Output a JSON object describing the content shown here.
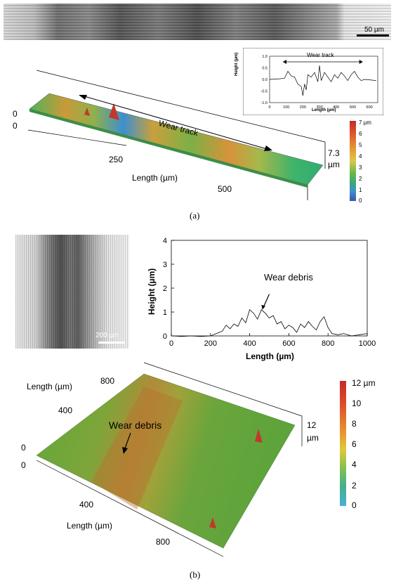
{
  "panel_a": {
    "micrograph": {
      "scale_bar": "50 µm"
    },
    "inset_chart": {
      "title": "Wear track",
      "xlabel": "Length (µm)",
      "ylabel": "Height (µm)",
      "xticks": [
        "0",
        "100",
        "200",
        "300",
        "400",
        "500",
        "600"
      ],
      "yticks": [
        "1.0",
        "0.5",
        "0.0",
        "-0.5",
        "-1.0"
      ]
    },
    "surface": {
      "wear_track_label": "Wear track",
      "length_label": "Length (µm)",
      "ticks": {
        "t0a": "0",
        "t0b": "0",
        "t250": "250",
        "t500": "500"
      },
      "height_label_1": "7.3",
      "height_label_2": "µm",
      "colorbar_ticks": [
        "7 µm",
        "6",
        "5",
        "4",
        "3",
        "2",
        "1",
        "0"
      ]
    },
    "caption": "(a)"
  },
  "panel_b": {
    "micrograph": {
      "scale_bar": "200 µm"
    },
    "chart": {
      "annotation": "Wear debris",
      "xlabel": "Length (µm)",
      "ylabel": "Height (µm)",
      "xticks": [
        "0",
        "200",
        "400",
        "600",
        "800",
        "1000"
      ],
      "yticks": [
        "4",
        "3",
        "2",
        "1",
        "0"
      ]
    },
    "surface": {
      "annotation": "Wear debris",
      "length_label_top": "Length (µm)",
      "length_label_bottom": "Length (µm)",
      "ticks": {
        "t800a": "800",
        "t400a": "400",
        "t0a": "0",
        "t0b": "0",
        "t400b": "400",
        "t800b": "800"
      },
      "height_label_1": "12",
      "height_label_2": "µm",
      "colorbar_ticks": [
        "12 µm",
        "10",
        "8",
        "6",
        "4",
        "2",
        "0"
      ]
    },
    "caption": "(b)"
  },
  "chart_data": [
    {
      "type": "line",
      "title": "Wear track",
      "xlabel": "Length (µm)",
      "ylabel": "Height (µm)",
      "xlim": [
        0,
        650
      ],
      "ylim": [
        -1.0,
        1.0
      ],
      "x": [
        0,
        50,
        90,
        110,
        130,
        150,
        170,
        190,
        200,
        210,
        220,
        230,
        250,
        270,
        290,
        300,
        310,
        330,
        350,
        370,
        390,
        410,
        430,
        450,
        470,
        490,
        510,
        530,
        550,
        570,
        600,
        640
      ],
      "y": [
        0.0,
        0.02,
        0.05,
        0.35,
        0.15,
        0.1,
        -0.2,
        -0.3,
        -0.7,
        -0.2,
        -0.45,
        0.2,
        0.1,
        0.3,
        -0.1,
        0.6,
        -0.05,
        0.3,
        0.1,
        -0.1,
        0.2,
        0.05,
        0.3,
        0.15,
        -0.05,
        0.2,
        0.35,
        0.1,
        -0.05,
        0.0,
        -0.02,
        -0.05
      ]
    },
    {
      "type": "line",
      "xlabel": "Length (µm)",
      "ylabel": "Height (µm)",
      "xlim": [
        0,
        1000
      ],
      "ylim": [
        0,
        4
      ],
      "x": [
        0,
        50,
        100,
        150,
        200,
        230,
        260,
        280,
        300,
        320,
        340,
        360,
        380,
        400,
        420,
        440,
        460,
        480,
        500,
        520,
        540,
        560,
        580,
        600,
        620,
        640,
        660,
        680,
        700,
        720,
        740,
        760,
        780,
        800,
        820,
        850,
        880,
        920,
        960,
        1000
      ],
      "y": [
        0.0,
        -0.02,
        0.0,
        -0.02,
        0.0,
        0.1,
        0.2,
        0.45,
        0.3,
        0.5,
        0.4,
        0.75,
        0.55,
        1.1,
        0.95,
        0.7,
        1.1,
        0.95,
        0.75,
        0.85,
        0.5,
        0.6,
        0.3,
        0.45,
        0.35,
        0.15,
        0.5,
        0.35,
        0.6,
        0.4,
        0.25,
        0.6,
        0.8,
        0.35,
        0.1,
        0.05,
        0.1,
        0.0,
        0.05,
        0.1
      ]
    }
  ]
}
